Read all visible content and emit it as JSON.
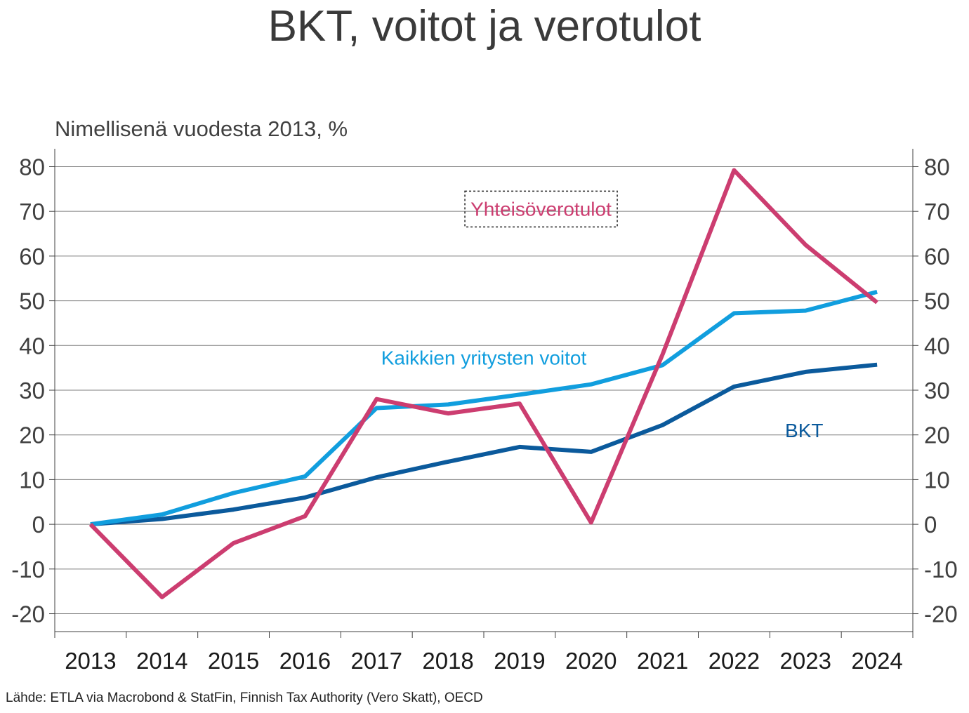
{
  "title": "BKT, voitot ja verotulot",
  "subtitle": "Nimellisenä vuodesta 2013, %",
  "source": "Lähde: ETLA via Macrobond & StatFin, Finnish Tax Authority (Vero Skatt), OECD",
  "chart_data": {
    "type": "line",
    "title": "BKT, voitot ja verotulot",
    "ylabel": "Nimellisenä vuodesta 2013, %",
    "categories": [
      "2013",
      "2014",
      "2015",
      "2016",
      "2017",
      "2018",
      "2019",
      "2020",
      "2021",
      "2022",
      "2023",
      "2024"
    ],
    "ylim": [
      -24,
      84
    ],
    "yticks": [
      -20,
      -10,
      0,
      10,
      20,
      30,
      40,
      50,
      60,
      70,
      80
    ],
    "y_axes": "left-and-right",
    "grid": "horizontal",
    "series": [
      {
        "name": "BKT",
        "color": "#0b5a9c",
        "label_position": "right-below",
        "values": [
          0,
          1.2,
          3.3,
          6.0,
          10.5,
          14.0,
          17.3,
          16.2,
          22.2,
          30.8,
          34.1,
          35.7
        ]
      },
      {
        "name": "Kaikkien yritysten voitot",
        "color": "#119ede",
        "label_position": "middle-above",
        "values": [
          0,
          2.2,
          7.0,
          10.7,
          26.0,
          26.8,
          29.0,
          31.3,
          35.6,
          47.2,
          47.8,
          52.0
        ]
      },
      {
        "name": "Yhteisöverotulot",
        "color": "#cc3d70",
        "label_position": "top-center-boxed",
        "values": [
          0,
          -16.3,
          -4.2,
          1.8,
          28.0,
          24.8,
          27.0,
          0.4,
          38.0,
          79.2,
          62.5,
          49.6
        ]
      }
    ]
  }
}
